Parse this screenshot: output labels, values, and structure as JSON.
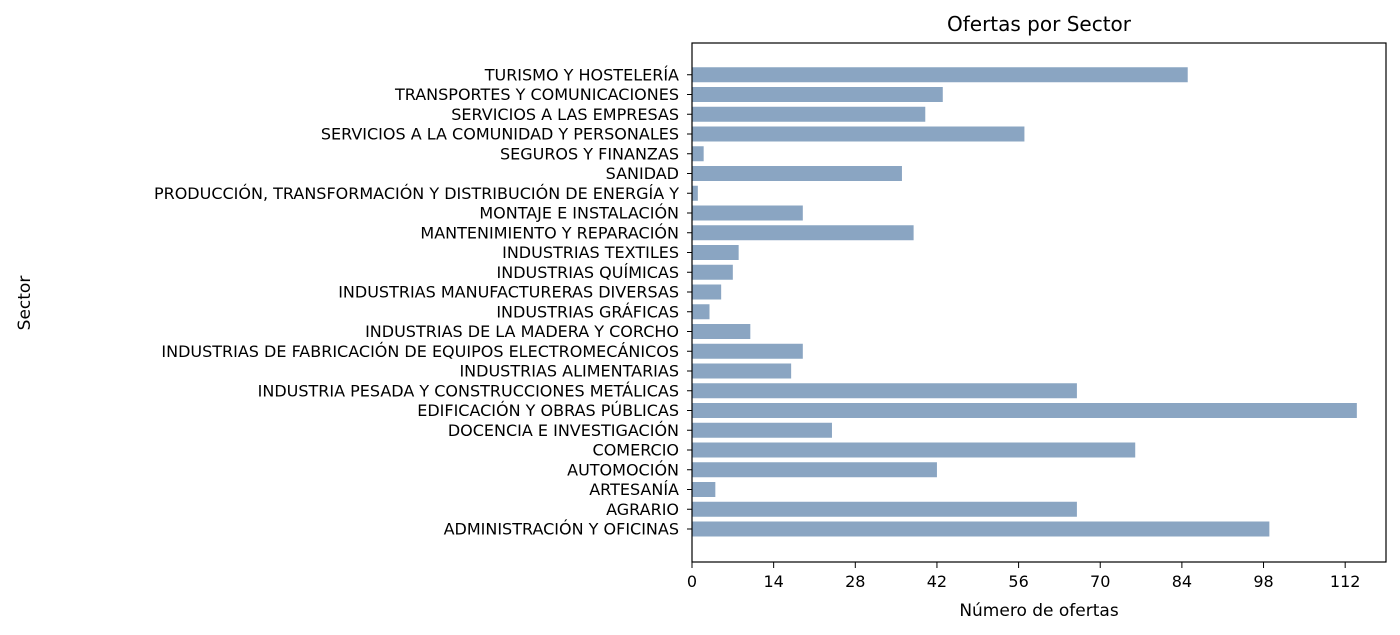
{
  "chart_data": {
    "type": "bar",
    "orientation": "horizontal",
    "title": "Ofertas por Sector",
    "xlabel": "Número de ofertas",
    "ylabel": "Sector",
    "xlim": [
      0,
      119
    ],
    "xticks": [
      0,
      14,
      28,
      42,
      56,
      70,
      84,
      98,
      112
    ],
    "grid": false,
    "bar_color": "#8aa5c2",
    "categories": [
      "ADMINISTRACIÓN Y OFICINAS",
      "AGRARIO",
      "ARTESANÍA",
      "AUTOMOCIÓN",
      "COMERCIO",
      "DOCENCIA E INVESTIGACIÓN",
      "EDIFICACIÓN Y OBRAS PÚBLICAS",
      "INDUSTRIA PESADA Y CONSTRUCCIONES METÁLICAS",
      "INDUSTRIAS ALIMENTARIAS",
      "INDUSTRIAS DE FABRICACIÓN DE EQUIPOS ELECTROMECÁNICOS",
      "INDUSTRIAS DE LA MADERA Y CORCHO",
      "INDUSTRIAS GRÁFICAS",
      "INDUSTRIAS MANUFACTURERAS DIVERSAS",
      "INDUSTRIAS QUÍMICAS",
      "INDUSTRIAS TEXTILES",
      "MANTENIMIENTO Y REPARACIÓN",
      "MONTAJE E INSTALACIÓN",
      "PRODUCCIÓN, TRANSFORMACIÓN Y DISTRIBUCIÓN DE ENERGÍA Y",
      "SANIDAD",
      "SEGUROS Y FINANZAS",
      "SERVICIOS A LA COMUNIDAD Y PERSONALES",
      "SERVICIOS A LAS EMPRESAS",
      "TRANSPORTES Y COMUNICACIONES",
      "TURISMO Y HOSTELERÍA"
    ],
    "values": [
      99,
      66,
      4,
      42,
      76,
      24,
      114,
      66,
      17,
      19,
      10,
      3,
      5,
      7,
      8,
      38,
      19,
      1,
      36,
      2,
      57,
      40,
      43,
      85
    ]
  }
}
